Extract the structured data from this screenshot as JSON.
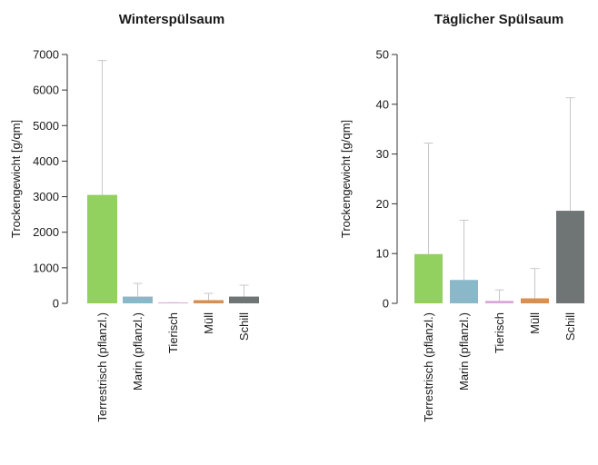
{
  "chart_data": [
    {
      "type": "bar",
      "title": "Winterspülsaum",
      "ylabel": "Trockengewicht [g/qm]",
      "xlabel": "",
      "ylim": [
        0,
        7000
      ],
      "yticks": [
        0,
        1000,
        2000,
        3000,
        4000,
        5000,
        6000,
        7000
      ],
      "categories": [
        "Terrestrisch (pflanzl.)",
        "Marin (pflanzl.)",
        "Tierisch",
        "Müll",
        "Schill"
      ],
      "values": [
        3050,
        190,
        5,
        90,
        190
      ],
      "errors_upper": [
        6830,
        560,
        20,
        280,
        510
      ],
      "colors": [
        "#92d060",
        "#8ab8c8",
        "#d8a8d8",
        "#d89050",
        "#6f7474"
      ]
    },
    {
      "type": "bar",
      "title": "Täglicher Spülsaum",
      "ylabel": "Trockengewicht [g/qm]",
      "xlabel": "",
      "ylim": [
        0,
        50
      ],
      "yticks": [
        0,
        10,
        20,
        30,
        40,
        50
      ],
      "categories": [
        "Terrestrisch (pflanzl.)",
        "Marin (pflanzl.)",
        "Tierisch",
        "Müll",
        "Schill"
      ],
      "values": [
        9.9,
        4.7,
        0.5,
        1.0,
        18.6
      ],
      "errors_upper": [
        32.2,
        16.7,
        2.7,
        7.0,
        41.3
      ],
      "colors": [
        "#92d060",
        "#8ab8c8",
        "#d8a8d8",
        "#d89050",
        "#6f7474"
      ]
    }
  ]
}
